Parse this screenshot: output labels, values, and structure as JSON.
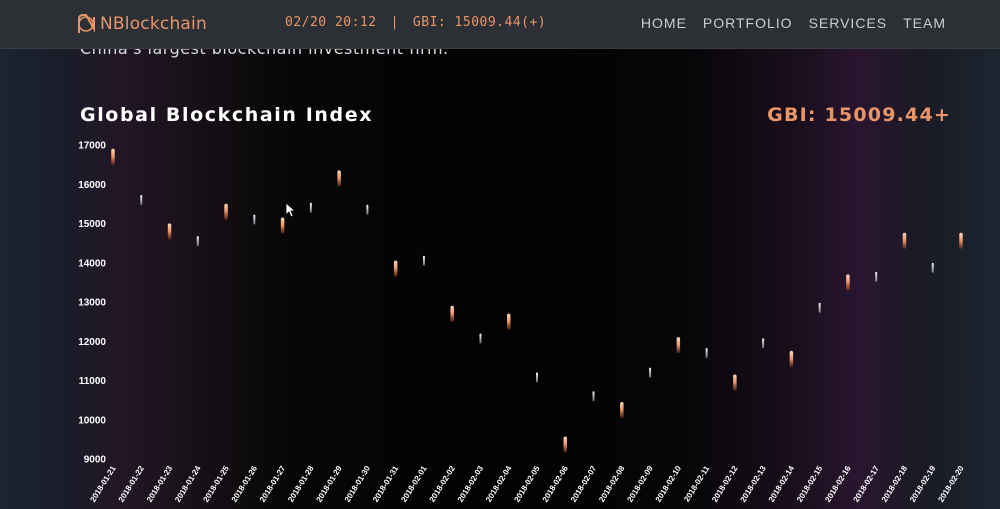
{
  "header": {
    "logo_text": "NBlockchain",
    "ticker_time": "02/20 20:12",
    "ticker_separator": "|",
    "ticker_value": "GBI: 15009.44(+)",
    "nav": [
      "HOME",
      "PORTFOLIO",
      "SERVICES",
      "TEAM"
    ]
  },
  "tagline": "China's largest blockchain investment firm.",
  "section": {
    "title": "Global Blockchain Index",
    "gbi_display": "GBI: 15009.44+"
  },
  "colors": {
    "accent": "#e8956a",
    "up_marker": "#ffffff",
    "down_marker": "#e8956a",
    "header_bg": "#2c2f33"
  },
  "chart_data": {
    "type": "scatter",
    "title": "Global Blockchain Index",
    "xlabel": "",
    "ylabel": "",
    "ylim": [
      9000,
      17000
    ],
    "yticks": [
      17000,
      16000,
      15000,
      14000,
      13000,
      12000,
      11000,
      10000,
      9000
    ],
    "grid": false,
    "categories": [
      "2018-01-21",
      "2018-01-22",
      "2018-01-23",
      "2018-01-24",
      "2018-01-25",
      "2018-01-26",
      "2018-01-27",
      "2018-01-28",
      "2018-01-29",
      "2018-01-30",
      "2018-01-31",
      "2018-02-01",
      "2018-02-02",
      "2018-02-03",
      "2018-02-04",
      "2018-02-05",
      "2018-02-06",
      "2018-02-07",
      "2018-02-08",
      "2018-02-09",
      "2018-02-10",
      "2018-02-11",
      "2018-02-12",
      "2018-02-13",
      "2018-02-14",
      "2018-02-15",
      "2018-02-16",
      "2018-02-17",
      "2018-02-18",
      "2018-02-19",
      "2018-02-20"
    ],
    "series": [
      {
        "values": [
          16700,
          15600,
          14800,
          14550,
          15300,
          15100,
          14950,
          15400,
          16150,
          15350,
          13850,
          14050,
          12700,
          12070,
          12500,
          11080,
          9370,
          10600,
          10250,
          11200,
          11900,
          11700,
          10950,
          11950,
          11550,
          12850,
          13500,
          13640,
          14560,
          13870,
          14560
        ],
        "direction": [
          "down",
          "up",
          "down",
          "up",
          "down",
          "up",
          "down",
          "up",
          "down",
          "up",
          "down",
          "up",
          "down",
          "up",
          "down",
          "up",
          "down",
          "up",
          "down",
          "up",
          "down",
          "up",
          "down",
          "up",
          "down",
          "up",
          "down",
          "up",
          "down",
          "up",
          "down"
        ]
      }
    ]
  }
}
